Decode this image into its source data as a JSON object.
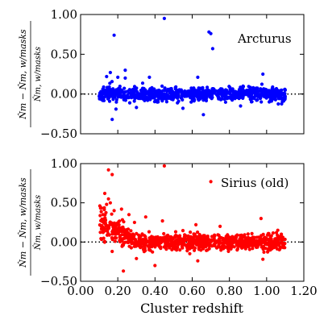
{
  "chart_data": [
    {
      "type": "scatter",
      "panel_label": "Arcturus",
      "ylabel": {
        "numerator": "N̂m − N̂m, w/masks",
        "denominator": "N̂m, w/masks"
      },
      "xlim": [
        0.0,
        1.2
      ],
      "ylim": [
        -0.5,
        1.0
      ],
      "yticks": [
        "−0.50",
        "0.00",
        "0.50",
        "1.00"
      ],
      "reference_line_y": 0.0,
      "color": "#0000ff",
      "x_range": [
        0.1,
        1.1
      ],
      "notable_points": [
        [
          0.18,
          0.74
        ],
        [
          0.45,
          0.95
        ],
        [
          0.69,
          0.78
        ],
        [
          0.7,
          0.76
        ],
        [
          0.71,
          0.57
        ],
        [
          0.14,
          0.22
        ],
        [
          0.16,
          0.27
        ],
        [
          0.2,
          0.21
        ],
        [
          0.24,
          0.2
        ],
        [
          0.37,
          0.21
        ],
        [
          0.24,
          0.3
        ],
        [
          0.63,
          0.21
        ],
        [
          0.98,
          0.25
        ],
        [
          0.17,
          -0.32
        ],
        [
          0.66,
          -0.26
        ],
        [
          0.19,
          -0.19
        ],
        [
          0.3,
          -0.17
        ],
        [
          0.55,
          -0.18
        ],
        [
          0.86,
          -0.15
        ]
      ],
      "bulk_spread": 0.08,
      "n_points": 900
    },
    {
      "type": "scatter",
      "panel_label": "Sirius (old)",
      "ylabel": {
        "numerator": "N̂m − N̂m, w/masks",
        "denominator": "N̂m, w/masks"
      },
      "xlabel": "Cluster redshift",
      "xlim": [
        0.0,
        1.2
      ],
      "ylim": [
        -0.5,
        1.0
      ],
      "xticks": [
        "0.00",
        "0.20",
        "0.40",
        "0.60",
        "0.80",
        "1.00",
        "1.20"
      ],
      "yticks": [
        "−0.50",
        "0.00",
        "0.50",
        "1.00"
      ],
      "reference_line_y": 0.0,
      "color": "#ff0000",
      "x_range": [
        0.1,
        1.1
      ],
      "notable_points": [
        [
          0.15,
          0.92
        ],
        [
          0.17,
          0.86
        ],
        [
          0.45,
          0.97
        ],
        [
          0.7,
          0.77
        ],
        [
          0.13,
          0.62
        ],
        [
          0.15,
          0.55
        ],
        [
          0.14,
          0.48
        ],
        [
          0.16,
          0.5
        ],
        [
          0.18,
          0.4
        ],
        [
          0.22,
          0.42
        ],
        [
          0.26,
          0.35
        ],
        [
          0.35,
          0.32
        ],
        [
          0.29,
          0.25
        ],
        [
          0.44,
          0.27
        ],
        [
          0.62,
          0.22
        ],
        [
          0.75,
          0.2
        ],
        [
          0.97,
          0.3
        ],
        [
          0.23,
          -0.37
        ],
        [
          0.4,
          -0.3
        ],
        [
          0.63,
          -0.24
        ],
        [
          0.98,
          -0.22
        ],
        [
          0.3,
          -0.21
        ],
        [
          0.17,
          -0.12
        ],
        [
          1.06,
          0.15
        ]
      ],
      "bulk_spread": 0.09,
      "n_points": 1000
    }
  ]
}
